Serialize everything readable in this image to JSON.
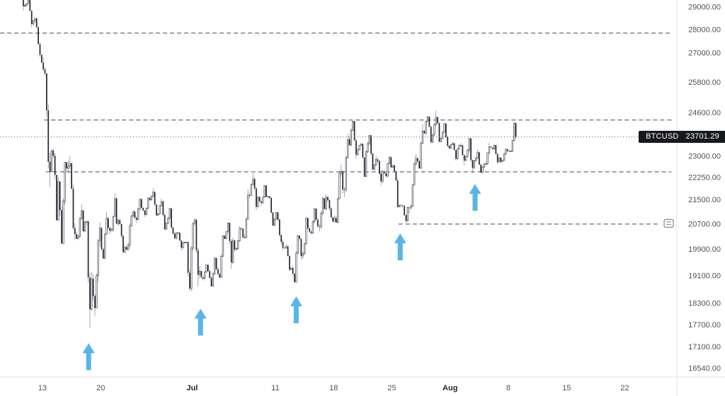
{
  "badge": {
    "symbol": "BTCUSD",
    "price": "23701.29"
  },
  "chart_data": {
    "type": "candlestick",
    "symbol": "BTCUSD",
    "title": "BTCUSD price chart with horizontal support/resistance levels and blue up-arrow markers",
    "scale": "logarithmic",
    "legend_position": "none",
    "grid": false,
    "last_price": 23701.29,
    "y_axis": {
      "side": "right",
      "tick_labels": [
        29000,
        28000,
        27000,
        25800,
        24600,
        23000,
        22250,
        21500,
        20700,
        19900,
        19100,
        18300,
        17700,
        17100,
        16540
      ]
    },
    "x_axis": {
      "ticks": [
        {
          "label": "13",
          "day": 3,
          "month": false
        },
        {
          "label": "20",
          "day": 10,
          "month": false
        },
        {
          "label": "Jul",
          "day": 21,
          "month": true
        },
        {
          "label": "11",
          "day": 31,
          "month": false
        },
        {
          "label": "18",
          "day": 38,
          "month": false
        },
        {
          "label": "25",
          "day": 45,
          "month": false
        },
        {
          "label": "Aug",
          "day": 52,
          "month": true
        },
        {
          "label": "8",
          "day": 59,
          "month": false
        },
        {
          "label": "15",
          "day": 66,
          "month": false
        },
        {
          "label": "22",
          "day": 73,
          "month": false
        }
      ]
    },
    "daily_ohlc": [
      [
        "Jun 10",
        30100,
        30330,
        28850,
        29080
      ],
      [
        "Jun 11",
        29080,
        29420,
        28100,
        28400
      ],
      [
        "Jun 12",
        28400,
        28530,
        26580,
        26600
      ],
      [
        "Jun 13",
        26600,
        26820,
        21920,
        22450
      ],
      [
        "Jun 14",
        22450,
        23260,
        20820,
        22110
      ],
      [
        "Jun 15",
        22110,
        22790,
        20080,
        22570
      ],
      [
        "Jun 16",
        22570,
        23010,
        20190,
        20380
      ],
      [
        "Jun 17",
        20380,
        21340,
        20230,
        20470
      ],
      [
        "Jun 18",
        20470,
        20790,
        17620,
        19010
      ],
      [
        "Jun 19",
        19010,
        20760,
        17950,
        20570
      ],
      [
        "Jun 20",
        20570,
        21090,
        19620,
        20580
      ],
      [
        "Jun 21",
        20580,
        21710,
        20380,
        20710
      ],
      [
        "Jun 22",
        20710,
        20880,
        19770,
        19970
      ],
      [
        "Jun 23",
        19970,
        21160,
        19890,
        21100
      ],
      [
        "Jun 24",
        21100,
        21520,
        20740,
        21230
      ],
      [
        "Jun 25",
        21230,
        21560,
        20930,
        21490
      ],
      [
        "Jun 26",
        21490,
        21880,
        20980,
        21030
      ],
      [
        "Jun 27",
        21030,
        21530,
        20500,
        20730
      ],
      [
        "Jun 28",
        20730,
        21210,
        20210,
        20250
      ],
      [
        "Jun 29",
        20250,
        20430,
        19860,
        20110
      ],
      [
        "Jun 30",
        20110,
        20130,
        18650,
        19940
      ],
      [
        "Jul 1",
        19940,
        20890,
        18780,
        19240
      ],
      [
        "Jul 2",
        19240,
        19430,
        18960,
        19240
      ],
      [
        "Jul 3",
        19240,
        19640,
        18790,
        19300
      ],
      [
        "Jul 4",
        19300,
        20330,
        19050,
        20230
      ],
      [
        "Jul 5",
        20230,
        20740,
        19310,
        20180
      ],
      [
        "Jul 6",
        20180,
        20630,
        19830,
        20550
      ],
      [
        "Jul 7",
        20550,
        21850,
        20270,
        21640
      ],
      [
        "Jul 8",
        21640,
        22400,
        21160,
        21590
      ],
      [
        "Jul 9",
        21590,
        21980,
        21300,
        21590
      ],
      [
        "Jul 10",
        21590,
        21610,
        20650,
        20860
      ],
      [
        "Jul 11",
        20860,
        21080,
        19870,
        19950
      ],
      [
        "Jul 12",
        19950,
        20050,
        19230,
        19330
      ],
      [
        "Jul 13",
        19330,
        20340,
        18910,
        20230
      ],
      [
        "Jul 14",
        20230,
        20930,
        19590,
        20570
      ],
      [
        "Jul 15",
        20570,
        21210,
        20360,
        20840
      ],
      [
        "Jul 16",
        20840,
        21600,
        20460,
        21190
      ],
      [
        "Jul 17",
        21190,
        21680,
        20740,
        20790
      ],
      [
        "Jul 18",
        20790,
        22700,
        20750,
        22470
      ],
      [
        "Jul 19",
        22470,
        23810,
        21590,
        23400
      ],
      [
        "Jul 20",
        23400,
        24290,
        22910,
        23230
      ],
      [
        "Jul 21",
        23230,
        23450,
        22280,
        23160
      ],
      [
        "Jul 22",
        23160,
        23760,
        22530,
        22690
      ],
      [
        "Jul 23",
        22690,
        23000,
        21980,
        22460
      ],
      [
        "Jul 24",
        22460,
        23020,
        22270,
        22610
      ],
      [
        "Jul 25",
        22610,
        22680,
        21250,
        21310
      ],
      [
        "Jul 26",
        21310,
        21350,
        20740,
        21240
      ],
      [
        "Jul 27",
        21240,
        23070,
        21050,
        22930
      ],
      [
        "Jul 28",
        22930,
        24180,
        22570,
        23840
      ],
      [
        "Jul 29",
        23840,
        24460,
        23440,
        23770
      ],
      [
        "Jul 30",
        23770,
        24680,
        23520,
        23640
      ],
      [
        "Jul 31",
        23640,
        24200,
        23250,
        23290
      ],
      [
        "Aug 1",
        23290,
        23520,
        22840,
        23270
      ],
      [
        "Aug 2",
        23270,
        23470,
        22670,
        22980
      ],
      [
        "Aug 3",
        22980,
        23650,
        22400,
        22840
      ],
      [
        "Aug 4",
        22840,
        23230,
        22390,
        22620
      ],
      [
        "Aug 5",
        22620,
        23480,
        22570,
        23310
      ],
      [
        "Aug 6",
        23310,
        23400,
        22710,
        22950
      ],
      [
        "Aug 7",
        22950,
        23280,
        22750,
        23180
      ],
      [
        "Aug 8",
        23180,
        24260,
        23160,
        23701.29
      ]
    ],
    "levels": [
      {
        "price": 27850,
        "from_day": -2.1,
        "to_day": 78.6
      },
      {
        "price": 24330,
        "from_day": 3.2,
        "to_day": 78.6
      },
      {
        "price": 22450,
        "from_day": 3.4,
        "to_day": 78.6
      },
      {
        "price": 20700,
        "from_day": 45.8,
        "to_day": 77.3,
        "icon": "callout"
      }
    ],
    "arrows": [
      {
        "day": 8.55,
        "tip_price": 17200
      },
      {
        "day": 22.0,
        "tip_price": 18150
      },
      {
        "day": 33.5,
        "tip_price": 18500
      },
      {
        "day": 46.0,
        "tip_price": 20400
      },
      {
        "day": 55.0,
        "tip_price": 22030
      }
    ],
    "colors": {
      "up_body": "#ffffff",
      "up_border": "#30343e",
      "down_body": "#23262f",
      "wick": "#7d8089",
      "level": "#42454f",
      "arrow": "#57b5e9",
      "last_price_line": "#555860",
      "axis_text": "#4e525c",
      "month_text": "#23262f",
      "axis_border": "#e4e6ec",
      "badge_bg": "#16181e",
      "badge_text": "#ffffff"
    }
  }
}
